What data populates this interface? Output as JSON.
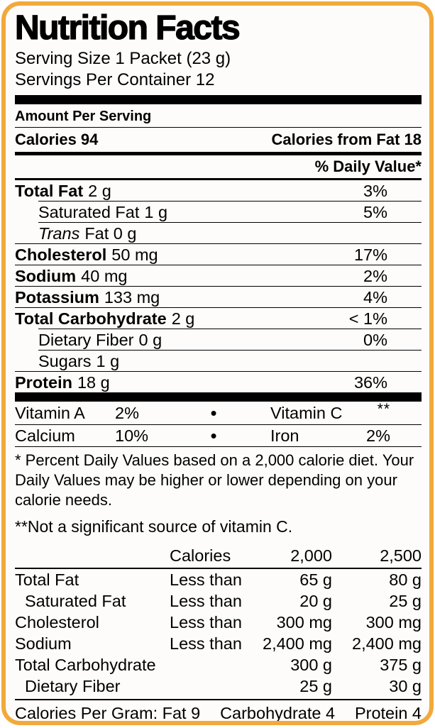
{
  "colors": {
    "border": "#F2A93B",
    "text": "#000000",
    "background": "#FDFCFA",
    "rule": "#000000"
  },
  "header": {
    "title": "Nutrition Facts",
    "serving_size": "Serving Size 1 Packet (23 g)",
    "servings_per_container": "Servings Per Container 12"
  },
  "amount_per_serving": {
    "label": "Amount Per Serving",
    "calories": "Calories 94",
    "calories_from_fat": "Calories from Fat 18",
    "daily_value_header": "% Daily Value*"
  },
  "nutrients": [
    {
      "name": "Total Fat",
      "amount": "2 g",
      "dv": "3%"
    },
    {
      "name": "Saturated Fat",
      "amount": "1 g",
      "dv": "5%"
    },
    {
      "name": "Trans",
      "amount": "Fat 0 g",
      "dv": ""
    },
    {
      "name": "Cholesterol",
      "amount": "50 mg",
      "dv": "17%"
    },
    {
      "name": "Sodium",
      "amount": "40 mg",
      "dv": "2%"
    },
    {
      "name": "Potassium",
      "amount": "133 mg",
      "dv": "4%"
    },
    {
      "name": "Total Carbohydrate",
      "amount": "2 g",
      "dv": "< 1%"
    },
    {
      "name": "Dietary Fiber",
      "amount": "0 g",
      "dv": "0%"
    },
    {
      "name": "Sugars",
      "amount": "1 g",
      "dv": ""
    },
    {
      "name": "Protein",
      "amount": "18 g",
      "dv": "36%"
    }
  ],
  "vitamins": {
    "bullet": "•",
    "row1": {
      "left_name": "Vitamin A",
      "left_value": "2%",
      "right_name": "Vitamin C",
      "right_value": "**"
    },
    "row2": {
      "left_name": "Calcium",
      "left_value": "10%",
      "right_name": "Iron",
      "right_value": "2%"
    }
  },
  "footnote": {
    "text": "* Percent Daily Values based on a 2,000 calorie diet. Your Daily Values may be higher or lower depending on your calorie needs.",
    "note2": "**Not a significant source of vitamin C."
  },
  "reference_table": {
    "header": {
      "col2": "Calories",
      "col3": "2,000",
      "col4": "2,500"
    },
    "rows": [
      {
        "name": "Total Fat",
        "qualifier": "Less than",
        "v2000": "65 g",
        "v2500": "80 g"
      },
      {
        "name": "Saturated Fat",
        "qualifier": "Less than",
        "v2000": "20 g",
        "v2500": "25 g"
      },
      {
        "name": "Cholesterol",
        "qualifier": "Less than",
        "v2000": "300 mg",
        "v2500": "300 mg"
      },
      {
        "name": "Sodium",
        "qualifier": "Less than",
        "v2000": "2,400 mg",
        "v2500": "2,400 mg"
      },
      {
        "name": "Total Carbohydrate",
        "qualifier": "",
        "v2000": "300 g",
        "v2500": "375 g"
      },
      {
        "name": "Dietary Fiber",
        "qualifier": "",
        "v2000": "25 g",
        "v2500": "30 g"
      }
    ]
  },
  "calories_per_gram": {
    "seg1": "Calories Per Gram: Fat 9",
    "seg2": "Carbohydrate 4",
    "seg3": "Protein 4"
  }
}
